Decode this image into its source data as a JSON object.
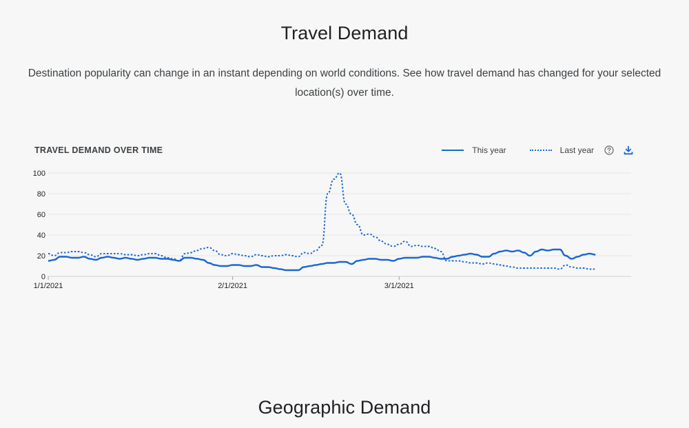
{
  "sections": {
    "travel_demand": {
      "title": "Travel Demand",
      "description": "Destination popularity can change in an instant depending on world conditions. See how travel demand has changed for your selected location(s) over time."
    },
    "geographic_demand": {
      "title": "Geographic Demand"
    }
  },
  "chart": {
    "heading": "TRAVEL DEMAND OVER TIME",
    "legend": {
      "this_year": "This year",
      "last_year": "Last year"
    },
    "icons": {
      "help": "help-circle-icon",
      "download": "download-icon"
    },
    "accent_color": "#1967d2"
  },
  "chart_data": {
    "type": "line",
    "title": "TRAVEL DEMAND OVER TIME",
    "xlabel": "",
    "ylabel": "",
    "x_start": "1/1/2021",
    "x_ticks": [
      "1/1/2021",
      "2/1/2021",
      "3/1/2021"
    ],
    "x_tick_days": [
      0,
      31,
      59
    ],
    "x_range_days": [
      0,
      98
    ],
    "ylim": [
      0,
      100
    ],
    "y_ticks": [
      0,
      20,
      40,
      60,
      80,
      100
    ],
    "grid": true,
    "legend_position": "top-right",
    "series": [
      {
        "name": "This year",
        "style": "solid",
        "color": "#1967d2",
        "points": [
          [
            0,
            15
          ],
          [
            1,
            16
          ],
          [
            2,
            19
          ],
          [
            3,
            19
          ],
          [
            4,
            18
          ],
          [
            5,
            18
          ],
          [
            6,
            19
          ],
          [
            7,
            17
          ],
          [
            8,
            16
          ],
          [
            9,
            18
          ],
          [
            10,
            19
          ],
          [
            11,
            18
          ],
          [
            12,
            17
          ],
          [
            13,
            18
          ],
          [
            14,
            17
          ],
          [
            15,
            16
          ],
          [
            16,
            17
          ],
          [
            17,
            18
          ],
          [
            18,
            18
          ],
          [
            19,
            17
          ],
          [
            20,
            17
          ],
          [
            21,
            16
          ],
          [
            22,
            15
          ],
          [
            23,
            18
          ],
          [
            24,
            18
          ],
          [
            25,
            17
          ],
          [
            26,
            16
          ],
          [
            27,
            13
          ],
          [
            28,
            11
          ],
          [
            29,
            10
          ],
          [
            30,
            10
          ],
          [
            31,
            11
          ],
          [
            32,
            11
          ],
          [
            33,
            10
          ],
          [
            34,
            10
          ],
          [
            35,
            11
          ],
          [
            36,
            9
          ],
          [
            37,
            9
          ],
          [
            38,
            8
          ],
          [
            39,
            7
          ],
          [
            40,
            6
          ],
          [
            41,
            6
          ],
          [
            42,
            6
          ],
          [
            43,
            9
          ],
          [
            44,
            10
          ],
          [
            45,
            11
          ],
          [
            46,
            12
          ],
          [
            47,
            13
          ],
          [
            48,
            13
          ],
          [
            49,
            14
          ],
          [
            50,
            14
          ],
          [
            51,
            12
          ],
          [
            52,
            15
          ],
          [
            53,
            16
          ],
          [
            54,
            17
          ],
          [
            55,
            17
          ],
          [
            56,
            16
          ],
          [
            57,
            16
          ],
          [
            58,
            15
          ],
          [
            59,
            17
          ],
          [
            60,
            18
          ],
          [
            61,
            18
          ],
          [
            62,
            18
          ],
          [
            63,
            19
          ],
          [
            64,
            19
          ],
          [
            65,
            18
          ],
          [
            66,
            17
          ],
          [
            67,
            17
          ],
          [
            68,
            19
          ],
          [
            69,
            20
          ],
          [
            70,
            21
          ],
          [
            71,
            22
          ],
          [
            72,
            21
          ],
          [
            73,
            19
          ],
          [
            74,
            19
          ],
          [
            75,
            22
          ],
          [
            76,
            24
          ],
          [
            77,
            25
          ],
          [
            78,
            24
          ],
          [
            79,
            25
          ],
          [
            80,
            23
          ],
          [
            81,
            20
          ],
          [
            82,
            24
          ],
          [
            83,
            26
          ],
          [
            84,
            25
          ],
          [
            85,
            26
          ],
          [
            86,
            26
          ],
          [
            87,
            20
          ],
          [
            88,
            17
          ],
          [
            89,
            19
          ],
          [
            90,
            21
          ],
          [
            91,
            22
          ],
          [
            92,
            21
          ]
        ]
      },
      {
        "name": "Last year",
        "style": "dotted",
        "color": "#1967d2",
        "points": [
          [
            0,
            22
          ],
          [
            1,
            20
          ],
          [
            2,
            23
          ],
          [
            3,
            23
          ],
          [
            4,
            24
          ],
          [
            5,
            24
          ],
          [
            6,
            23
          ],
          [
            7,
            21
          ],
          [
            8,
            19
          ],
          [
            9,
            22
          ],
          [
            10,
            22
          ],
          [
            11,
            22
          ],
          [
            12,
            22
          ],
          [
            13,
            21
          ],
          [
            14,
            21
          ],
          [
            15,
            20
          ],
          [
            16,
            21
          ],
          [
            17,
            22
          ],
          [
            18,
            22
          ],
          [
            19,
            20
          ],
          [
            20,
            18
          ],
          [
            21,
            17
          ],
          [
            22,
            15
          ],
          [
            23,
            22
          ],
          [
            24,
            23
          ],
          [
            25,
            25
          ],
          [
            26,
            27
          ],
          [
            27,
            28
          ],
          [
            28,
            25
          ],
          [
            29,
            21
          ],
          [
            30,
            20
          ],
          [
            31,
            22
          ],
          [
            32,
            21
          ],
          [
            33,
            20
          ],
          [
            34,
            19
          ],
          [
            35,
            21
          ],
          [
            36,
            20
          ],
          [
            37,
            19
          ],
          [
            38,
            20
          ],
          [
            39,
            20
          ],
          [
            40,
            21
          ],
          [
            41,
            20
          ],
          [
            42,
            19
          ],
          [
            43,
            23
          ],
          [
            44,
            22
          ],
          [
            45,
            25
          ],
          [
            46,
            30
          ],
          [
            47,
            80
          ],
          [
            48,
            94
          ],
          [
            49,
            100
          ],
          [
            50,
            70
          ],
          [
            51,
            60
          ],
          [
            52,
            50
          ],
          [
            53,
            40
          ],
          [
            54,
            41
          ],
          [
            55,
            38
          ],
          [
            56,
            34
          ],
          [
            57,
            31
          ],
          [
            58,
            29
          ],
          [
            59,
            31
          ],
          [
            60,
            34
          ],
          [
            61,
            29
          ],
          [
            62,
            30
          ],
          [
            63,
            29
          ],
          [
            64,
            29
          ],
          [
            65,
            27
          ],
          [
            66,
            24
          ],
          [
            67,
            15
          ],
          [
            68,
            15
          ],
          [
            69,
            15
          ],
          [
            70,
            14
          ],
          [
            71,
            13
          ],
          [
            72,
            13
          ],
          [
            73,
            12
          ],
          [
            74,
            13
          ],
          [
            75,
            12
          ],
          [
            76,
            11
          ],
          [
            77,
            10
          ],
          [
            78,
            9
          ],
          [
            79,
            8
          ],
          [
            80,
            8
          ],
          [
            81,
            8
          ],
          [
            82,
            8
          ],
          [
            83,
            8
          ],
          [
            84,
            8
          ],
          [
            85,
            8
          ],
          [
            86,
            7
          ],
          [
            87,
            11
          ],
          [
            88,
            9
          ],
          [
            89,
            8
          ],
          [
            90,
            8
          ],
          [
            91,
            7
          ],
          [
            92,
            7
          ]
        ]
      }
    ]
  }
}
